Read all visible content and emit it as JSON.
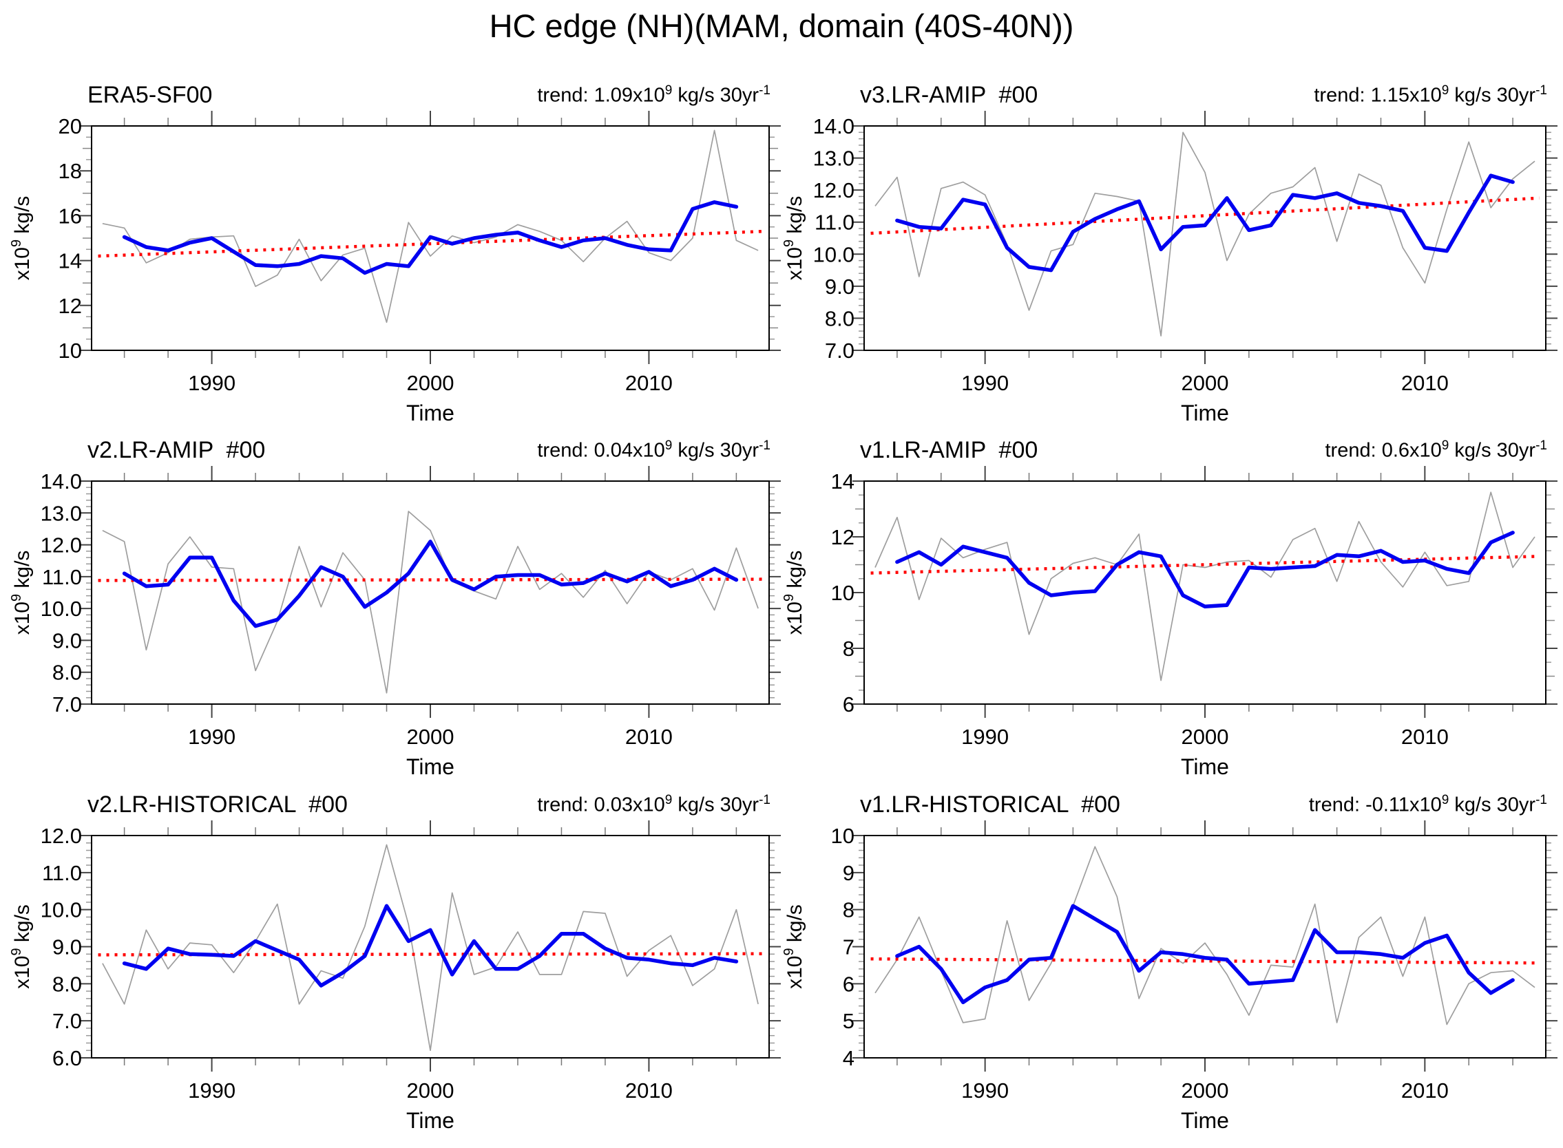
{
  "title": "HC edge (NH)(MAM, domain (40S-40N))",
  "axis": {
    "x_label": "Time",
    "y_label_prefix": "x10",
    "y_label_exp": "9",
    "y_label_suffix": " kg/s"
  },
  "colors": {
    "raw_line": "#9e9e9e",
    "smoothed_line": "#0000f0",
    "trend_line": "#ff0000",
    "axis_major_tick": "#444444",
    "axis_minor_tick": "#999999",
    "box": "#000000"
  },
  "chart_data": [
    {
      "type": "line",
      "name": "era5-sf00",
      "title": "ERA5-SF00",
      "trend_label": {
        "pre": "trend: 1.09x10",
        "exp": "9",
        "mid": " kg/s 30yr",
        "exp2": "-1"
      },
      "xlim": [
        1984.5,
        2015.5
      ],
      "ylim": [
        10,
        20
      ],
      "y_major": 2,
      "y_minor": 0.5,
      "y_tick_labels": [
        "10",
        "12",
        "14",
        "16",
        "18",
        "20"
      ],
      "x_tick_values": [
        1990,
        2000,
        2010
      ],
      "x_tick_labels": [
        "1990",
        "2000",
        "2010"
      ],
      "x_minor_from": 1986,
      "x_minor_step": 2,
      "x_minor_to": 2014,
      "series": {
        "annual": {
          "x_start": 1985,
          "values": [
            15.65,
            15.45,
            13.9,
            14.35,
            14.95,
            15.05,
            15.1,
            12.85,
            13.35,
            14.95,
            13.1,
            14.25,
            14.55,
            11.25,
            15.7,
            14.2,
            15.1,
            14.8,
            15.05,
            15.6,
            15.3,
            14.9,
            13.95,
            15.0,
            15.75,
            14.35,
            14.0,
            15.0,
            19.8,
            14.9,
            14.45
          ]
        },
        "smoothed": {
          "x_start": 1986,
          "values": [
            15.05,
            14.6,
            14.45,
            14.8,
            15.0,
            14.4,
            13.8,
            13.75,
            13.85,
            14.2,
            14.1,
            13.45,
            13.85,
            13.75,
            15.05,
            14.75,
            15.0,
            15.15,
            15.25,
            14.9,
            14.6,
            14.9,
            15.0,
            14.7,
            14.5,
            14.45,
            16.3,
            16.6,
            16.4
          ]
        },
        "trend": {
          "x": [
            1984.8,
            2015.2
          ],
          "values": [
            14.2,
            15.3
          ]
        }
      }
    },
    {
      "type": "line",
      "name": "v3-lr-amip",
      "title": "v3.LR-AMIP  #00",
      "trend_label": {
        "pre": "trend: 1.15x10",
        "exp": "9",
        "mid": " kg/s 30yr",
        "exp2": "-1"
      },
      "xlim": [
        1984.5,
        2015.5
      ],
      "ylim": [
        7,
        14
      ],
      "y_major": 1,
      "y_minor": 0.2,
      "y_tick_labels": [
        "7.0",
        "8.0",
        "9.0",
        "10.0",
        "11.0",
        "12.0",
        "13.0",
        "14.0"
      ],
      "x_tick_values": [
        1990,
        2000,
        2010
      ],
      "x_tick_labels": [
        "1990",
        "2000",
        "2010"
      ],
      "x_minor_from": 1986,
      "x_minor_step": 2,
      "x_minor_to": 2014,
      "series": {
        "annual": {
          "x_start": 1985,
          "values": [
            11.5,
            12.4,
            9.3,
            12.05,
            12.25,
            11.85,
            10.3,
            8.25,
            10.1,
            10.3,
            11.9,
            11.8,
            11.65,
            7.45,
            13.8,
            12.55,
            9.8,
            11.25,
            11.9,
            12.1,
            12.7,
            10.4,
            12.5,
            12.15,
            10.2,
            9.1,
            11.4,
            13.5,
            11.45,
            12.35,
            12.9
          ]
        },
        "smoothed": {
          "x_start": 1986,
          "values": [
            11.05,
            10.85,
            10.8,
            11.7,
            11.55,
            10.2,
            9.6,
            9.5,
            10.7,
            11.1,
            11.4,
            11.65,
            10.15,
            10.85,
            10.9,
            11.75,
            10.75,
            10.9,
            11.85,
            11.75,
            11.9,
            11.6,
            11.5,
            11.35,
            10.2,
            10.1,
            11.3,
            12.45,
            12.25
          ]
        },
        "trend": {
          "x": [
            1984.8,
            2015.2
          ],
          "values": [
            10.65,
            11.75
          ]
        }
      }
    },
    {
      "type": "line",
      "name": "v2-lr-amip",
      "title": "v2.LR-AMIP  #00",
      "trend_label": {
        "pre": "trend: 0.04x10",
        "exp": "9",
        "mid": " kg/s 30yr",
        "exp2": "-1"
      },
      "xlim": [
        1984.5,
        2015.5
      ],
      "ylim": [
        7,
        14
      ],
      "y_major": 1,
      "y_minor": 0.2,
      "y_tick_labels": [
        "7.0",
        "8.0",
        "9.0",
        "10.0",
        "11.0",
        "12.0",
        "13.0",
        "14.0"
      ],
      "x_tick_values": [
        1990,
        2000,
        2010
      ],
      "x_tick_labels": [
        "1990",
        "2000",
        "2010"
      ],
      "x_minor_from": 1986,
      "x_minor_step": 2,
      "x_minor_to": 2014,
      "series": {
        "annual": {
          "x_start": 1985,
          "values": [
            12.45,
            12.1,
            8.7,
            11.4,
            12.25,
            11.3,
            11.25,
            8.05,
            9.6,
            11.95,
            10.05,
            11.75,
            10.9,
            7.35,
            13.05,
            12.45,
            10.85,
            10.55,
            10.3,
            11.95,
            10.6,
            11.1,
            10.35,
            11.2,
            10.15,
            11.15,
            10.9,
            11.25,
            9.95,
            11.9,
            10.0
          ]
        },
        "smoothed": {
          "x_start": 1986,
          "values": [
            11.1,
            10.7,
            10.75,
            11.6,
            11.6,
            10.25,
            9.45,
            9.65,
            10.4,
            11.3,
            11.0,
            10.05,
            10.5,
            11.1,
            12.1,
            10.9,
            10.6,
            11.0,
            11.05,
            11.05,
            10.75,
            10.8,
            11.1,
            10.85,
            11.15,
            10.7,
            10.9,
            11.25,
            10.9
          ]
        },
        "trend": {
          "x": [
            1984.8,
            2015.2
          ],
          "values": [
            10.88,
            10.92
          ]
        }
      }
    },
    {
      "type": "line",
      "name": "v1-lr-amip",
      "title": "v1.LR-AMIP  #00",
      "trend_label": {
        "pre": "trend: 0.6x10",
        "exp": "9",
        "mid": " kg/s 30yr",
        "exp2": "-1"
      },
      "xlim": [
        1984.5,
        2015.5
      ],
      "ylim": [
        6,
        14
      ],
      "y_major": 2,
      "y_minor": 0.5,
      "y_tick_labels": [
        "6",
        "8",
        "10",
        "12",
        "14"
      ],
      "x_tick_values": [
        1990,
        2000,
        2010
      ],
      "x_tick_labels": [
        "1990",
        "2000",
        "2010"
      ],
      "x_minor_from": 1986,
      "x_minor_step": 2,
      "x_minor_to": 2014,
      "series": {
        "annual": {
          "x_start": 1985,
          "values": [
            10.9,
            12.7,
            9.75,
            11.95,
            11.25,
            11.55,
            11.8,
            8.5,
            10.5,
            11.05,
            11.25,
            11.0,
            12.1,
            6.85,
            11.0,
            10.9,
            11.1,
            11.15,
            10.55,
            11.9,
            12.3,
            10.4,
            12.55,
            11.1,
            10.2,
            11.45,
            10.25,
            10.4,
            13.6,
            10.9,
            12.0
          ]
        },
        "smoothed": {
          "x_start": 1986,
          "values": [
            11.1,
            11.45,
            11.0,
            11.65,
            11.45,
            11.25,
            10.35,
            9.9,
            10.0,
            10.05,
            11.0,
            11.45,
            11.3,
            9.9,
            9.5,
            9.55,
            10.9,
            10.85,
            10.9,
            10.95,
            11.35,
            11.3,
            11.5,
            11.1,
            11.15,
            10.85,
            10.7,
            11.8,
            12.15
          ]
        },
        "trend": {
          "x": [
            1984.8,
            2015.2
          ],
          "values": [
            10.7,
            11.3
          ]
        }
      }
    },
    {
      "type": "line",
      "name": "v2-lr-historical",
      "title": "v2.LR-HISTORICAL  #00",
      "trend_label": {
        "pre": "trend: 0.03x10",
        "exp": "9",
        "mid": " kg/s 30yr",
        "exp2": "-1"
      },
      "xlim": [
        1984.5,
        2015.5
      ],
      "ylim": [
        6,
        12
      ],
      "y_major": 1,
      "y_minor": 0.2,
      "y_tick_labels": [
        "6.0",
        "7.0",
        "8.0",
        "9.0",
        "10.0",
        "11.0",
        "12.0"
      ],
      "x_tick_values": [
        1990,
        2000,
        2010
      ],
      "x_tick_labels": [
        "1990",
        "2000",
        "2010"
      ],
      "x_minor_from": 1986,
      "x_minor_step": 2,
      "x_minor_to": 2014,
      "series": {
        "annual": {
          "x_start": 1985,
          "values": [
            8.55,
            7.45,
            9.45,
            8.4,
            9.1,
            9.05,
            8.3,
            9.15,
            10.15,
            7.45,
            8.35,
            8.15,
            9.55,
            11.75,
            9.6,
            6.2,
            10.45,
            8.25,
            8.45,
            9.4,
            8.25,
            8.25,
            9.95,
            9.9,
            8.2,
            8.9,
            9.3,
            7.95,
            8.4,
            10.0,
            7.45
          ]
        },
        "smoothed": {
          "x_start": 1986,
          "values": [
            8.55,
            8.4,
            8.95,
            8.8,
            8.78,
            8.75,
            9.15,
            8.9,
            8.65,
            7.95,
            8.3,
            8.75,
            10.1,
            9.15,
            9.45,
            8.25,
            9.15,
            8.4,
            8.4,
            8.75,
            9.35,
            9.35,
            8.95,
            8.7,
            8.65,
            8.55,
            8.5,
            8.7,
            8.6
          ]
        },
        "trend": {
          "x": [
            1984.8,
            2015.2
          ],
          "values": [
            8.78,
            8.81
          ]
        }
      }
    },
    {
      "type": "line",
      "name": "v1-lr-historical",
      "title": "v1.LR-HISTORICAL  #00",
      "trend_label": {
        "pre": "trend: -0.11x10",
        "exp": "9",
        "mid": " kg/s 30yr",
        "exp2": "-1"
      },
      "xlim": [
        1984.5,
        2015.5
      ],
      "ylim": [
        4,
        10
      ],
      "y_major": 1,
      "y_minor": 0.2,
      "y_tick_labels": [
        "4",
        "5",
        "6",
        "7",
        "8",
        "9",
        "10"
      ],
      "x_tick_values": [
        1990,
        2000,
        2010
      ],
      "x_tick_labels": [
        "1990",
        "2000",
        "2010"
      ],
      "x_minor_from": 1986,
      "x_minor_step": 2,
      "x_minor_to": 2014,
      "series": {
        "annual": {
          "x_start": 1985,
          "values": [
            5.75,
            6.65,
            7.8,
            6.35,
            4.95,
            5.05,
            7.7,
            5.55,
            6.55,
            8.1,
            9.7,
            8.35,
            5.6,
            6.95,
            6.55,
            7.1,
            6.25,
            5.15,
            6.5,
            6.45,
            8.15,
            4.95,
            7.25,
            7.8,
            6.2,
            7.8,
            4.9,
            6.0,
            6.3,
            6.35,
            5.9
          ]
        },
        "smoothed": {
          "x_start": 1986,
          "values": [
            6.75,
            7.0,
            6.4,
            5.5,
            5.9,
            6.1,
            6.65,
            6.7,
            8.1,
            7.75,
            7.4,
            6.35,
            6.85,
            6.8,
            6.7,
            6.65,
            6.0,
            6.05,
            6.1,
            7.45,
            6.85,
            6.85,
            6.8,
            6.7,
            7.1,
            7.3,
            6.3,
            5.75,
            6.1
          ]
        },
        "trend": {
          "x": [
            1984.8,
            2015.2
          ],
          "values": [
            6.67,
            6.56
          ]
        }
      }
    }
  ]
}
